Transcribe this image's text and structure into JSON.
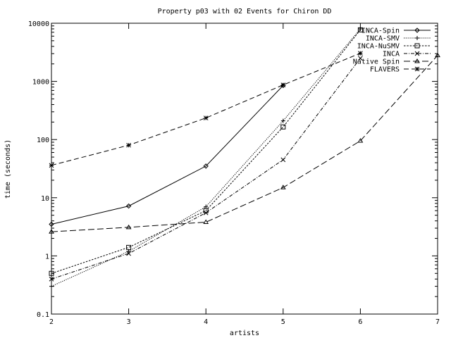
{
  "chart_data": {
    "type": "line",
    "title": "Property p03 with 02 Events for Chiron DD",
    "xlabel": "artists",
    "ylabel": "time (seconds)",
    "y_scale": "log",
    "xlim": [
      2,
      7
    ],
    "ylim": [
      0.1,
      10000
    ],
    "x_ticks": [
      2,
      3,
      4,
      5,
      6,
      7
    ],
    "y_ticks": [
      {
        "value": 0.1,
        "label": "0.1"
      },
      {
        "value": 1,
        "label": "1"
      },
      {
        "value": 10,
        "label": "10"
      },
      {
        "value": 100,
        "label": "100"
      },
      {
        "value": 1000,
        "label": "1000"
      },
      {
        "value": 10000,
        "label": "10000"
      }
    ],
    "grid": false,
    "legend_position": "top-right",
    "series": [
      {
        "name": "INCA-Spin",
        "marker": "diamond",
        "dash": "",
        "x": [
          2,
          3,
          4,
          5
        ],
        "y": [
          3.5,
          7.2,
          35,
          850
        ]
      },
      {
        "name": "INCA-SMV",
        "marker": "plus",
        "dash": "1.2,1.6",
        "x": [
          2,
          3,
          4,
          5,
          6
        ],
        "y": [
          0.3,
          1.2,
          7,
          210,
          8000
        ]
      },
      {
        "name": "INCA-NuSMV",
        "marker": "square",
        "dash": "2.5,1.8",
        "x": [
          2,
          3,
          4,
          5,
          6
        ],
        "y": [
          0.5,
          1.4,
          6,
          165,
          7700
        ]
      },
      {
        "name": "INCA",
        "marker": "cross",
        "dash": "5,2,1,2",
        "x": [
          2,
          3,
          4,
          5,
          6
        ],
        "y": [
          0.4,
          1.1,
          5.5,
          45,
          2500
        ]
      },
      {
        "name": "Native Spin",
        "marker": "triangle",
        "dash": "9,4",
        "x": [
          2,
          3,
          4,
          5,
          6,
          7
        ],
        "y": [
          2.6,
          3.1,
          3.8,
          15,
          95,
          2800
        ]
      },
      {
        "name": "FLAVERS",
        "marker": "star",
        "dash": "7,4",
        "x": [
          2,
          3,
          4,
          5,
          6
        ],
        "y": [
          36,
          80,
          235,
          870,
          3050
        ]
      }
    ]
  }
}
